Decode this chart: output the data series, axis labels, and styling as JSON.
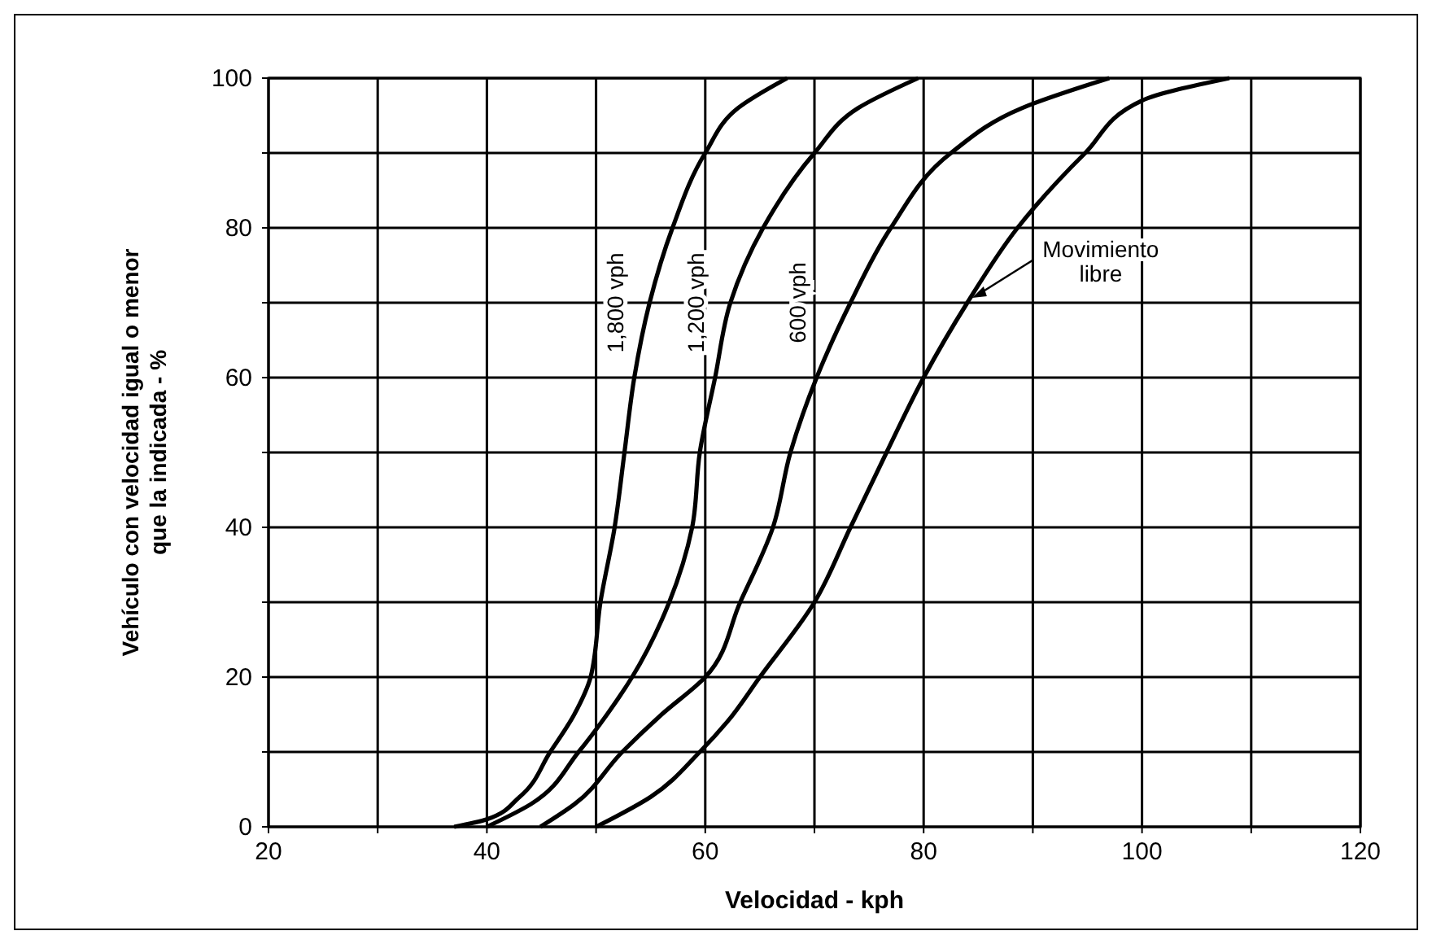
{
  "chart_data": {
    "type": "line",
    "xlabel": "Velocidad - kph",
    "ylabel": "Vehículo con velocidad igual o menor\nque la indicada - %",
    "xlim": [
      20,
      120
    ],
    "ylim": [
      0,
      100
    ],
    "xticks": [
      20,
      {
        "value": 30,
        "label": null
      },
      40,
      {
        "value": 50,
        "label": null
      },
      60,
      {
        "value": 70,
        "label": null
      },
      80,
      {
        "value": 90,
        "label": null
      },
      100,
      {
        "value": 110,
        "label": null
      },
      120
    ],
    "yticks": [
      0,
      {
        "value": 10,
        "label": null
      },
      20,
      {
        "value": 30,
        "label": null
      },
      40,
      {
        "value": 50,
        "label": null
      },
      60,
      {
        "value": 70,
        "label": null
      },
      80,
      {
        "value": 90,
        "label": null
      },
      100
    ],
    "grid": true,
    "legend": false,
    "marker": "none",
    "line_style": "solid",
    "series": [
      {
        "name": "1,800 vph",
        "color": "#000000",
        "x": [
          37,
          40,
          43,
          45.8,
          48,
          49.5,
          50.4,
          51.7,
          52.6,
          53.5,
          54.9,
          57,
          60,
          63,
          67.5
        ],
        "values": [
          0,
          1,
          4,
          10,
          15,
          20,
          30,
          40,
          50,
          60,
          70,
          80,
          90,
          96,
          100
        ]
      },
      {
        "name": "1,200 vph",
        "color": "#000000",
        "x": [
          40,
          44,
          48.4,
          51,
          53.3,
          56.7,
          58.8,
          59.5,
          60.9,
          62.3,
          65.3,
          70,
          74,
          79.5
        ],
        "values": [
          0,
          3,
          10,
          15,
          20,
          30,
          40,
          50,
          60,
          70,
          80,
          90,
          96,
          100
        ]
      },
      {
        "name": "600 vph",
        "color": "#000000",
        "x": [
          44.9,
          48,
          52.4,
          56,
          60,
          63.2,
          66.2,
          67.8,
          70.2,
          73.3,
          77,
          82.5,
          89,
          97
        ],
        "values": [
          0,
          3,
          10,
          15,
          20,
          30,
          40,
          50,
          60,
          70,
          80,
          90,
          96,
          100
        ]
      },
      {
        "name": "Movimiento libre",
        "color": "#000000",
        "x": [
          50,
          55,
          59.5,
          62,
          65,
          70,
          73.3,
          76.6,
          80,
          84,
          88.6,
          94.8,
          100,
          108
        ],
        "values": [
          0,
          4,
          10,
          14,
          20,
          30,
          40,
          50,
          60,
          70,
          80,
          90,
          97,
          100
        ]
      }
    ]
  }
}
